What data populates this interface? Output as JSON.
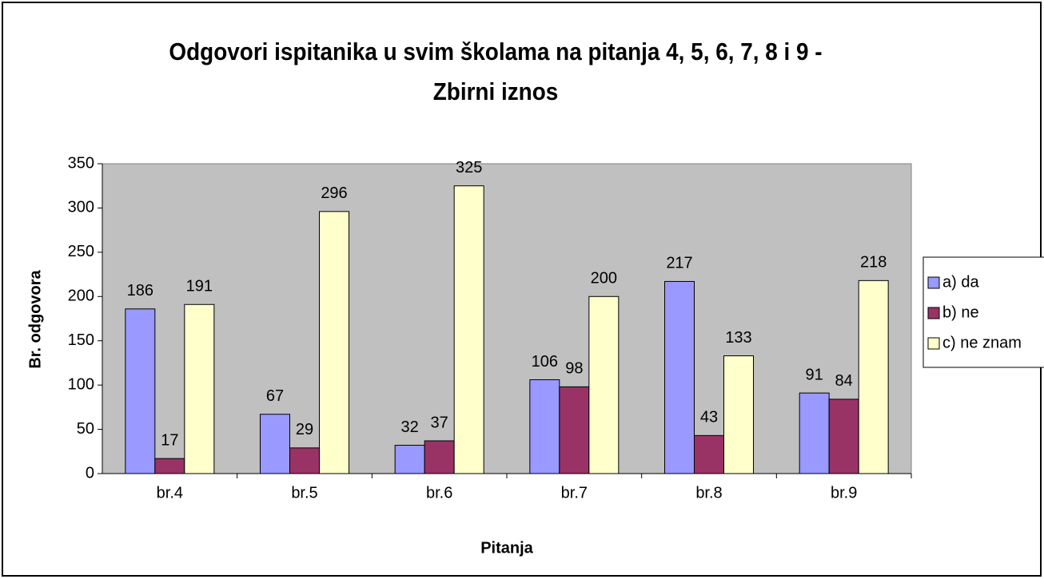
{
  "chart_data": {
    "type": "bar",
    "title": "Odgovori ispitanika u svim školama na pitanja 4, 5, 6, 7, 8 i 9 - Zbirni iznos",
    "x_label": "Pitanja",
    "y_label": "Br. odgovora",
    "categories": [
      "br.4",
      "br.5",
      "br.6",
      "br.7",
      "br.8",
      "br.9"
    ],
    "series": [
      {
        "name": "a) da",
        "color": "#9999ff",
        "values": [
          186,
          67,
          32,
          106,
          217,
          91
        ]
      },
      {
        "name": "b) ne",
        "color": "#993366",
        "values": [
          17,
          29,
          37,
          98,
          43,
          84
        ]
      },
      {
        "name": "c) ne znam",
        "color": "#ffffcc",
        "values": [
          191,
          296,
          325,
          200,
          133,
          218
        ]
      }
    ],
    "ylim": [
      0,
      350
    ],
    "yticks": [
      0,
      50,
      100,
      150,
      200,
      250,
      300,
      350
    ],
    "legend": "right",
    "plot_background": "#c0c0c0"
  }
}
